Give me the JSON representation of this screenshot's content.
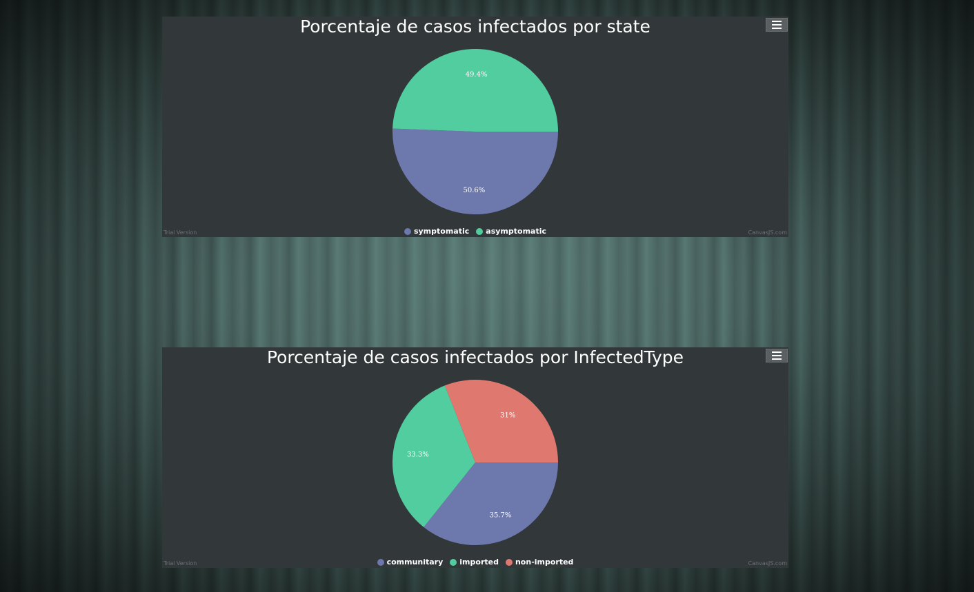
{
  "menu_icon": "hamburger-menu-icon",
  "chart_data": [
    {
      "type": "pie",
      "title": "Porcentaje de casos infectados por state",
      "legend_position": "bottom-center",
      "slices": [
        {
          "name": "symptomatic",
          "value": 50.6,
          "label": "50.6%",
          "color": "#6d78ad"
        },
        {
          "name": "asymptomatic",
          "value": 49.4,
          "label": "49.4%",
          "color": "#51cda0"
        }
      ],
      "watermark_left": "Trial Version",
      "watermark_right": "CanvasJS.com"
    },
    {
      "type": "pie",
      "title": "Porcentaje de casos infectados por InfectedType",
      "legend_position": "bottom-center",
      "slices": [
        {
          "name": "communitary",
          "value": 35.7,
          "label": "35.7%",
          "color": "#6d78ad"
        },
        {
          "name": "imported",
          "value": 33.3,
          "label": "33.3%",
          "color": "#51cda0"
        },
        {
          "name": "non-imported",
          "value": 31,
          "label": "31%",
          "color": "#df7970"
        }
      ],
      "watermark_left": "Trial Version",
      "watermark_right": "CanvasJS.com"
    }
  ]
}
